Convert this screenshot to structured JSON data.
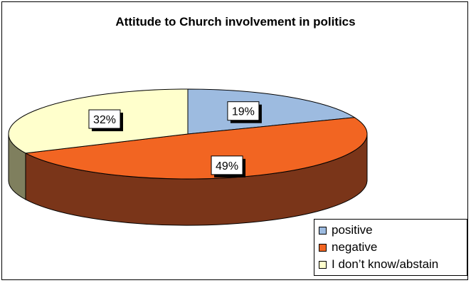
{
  "chart_data": {
    "type": "pie",
    "title": "Attitude to Church involvement in politics",
    "categories": [
      "positive",
      "negative",
      "I don’t know/abstain"
    ],
    "values": [
      19,
      49,
      32
    ],
    "data_labels": [
      "19%",
      "49%",
      "32%"
    ],
    "colors": {
      "top": [
        "#9DBBE0",
        "#F26522",
        "#FFFFCC"
      ],
      "side": [
        "#4A6486",
        "#7A3519",
        "#7F7F5E"
      ]
    },
    "legend_position": "bottom-right",
    "three_d": true
  }
}
